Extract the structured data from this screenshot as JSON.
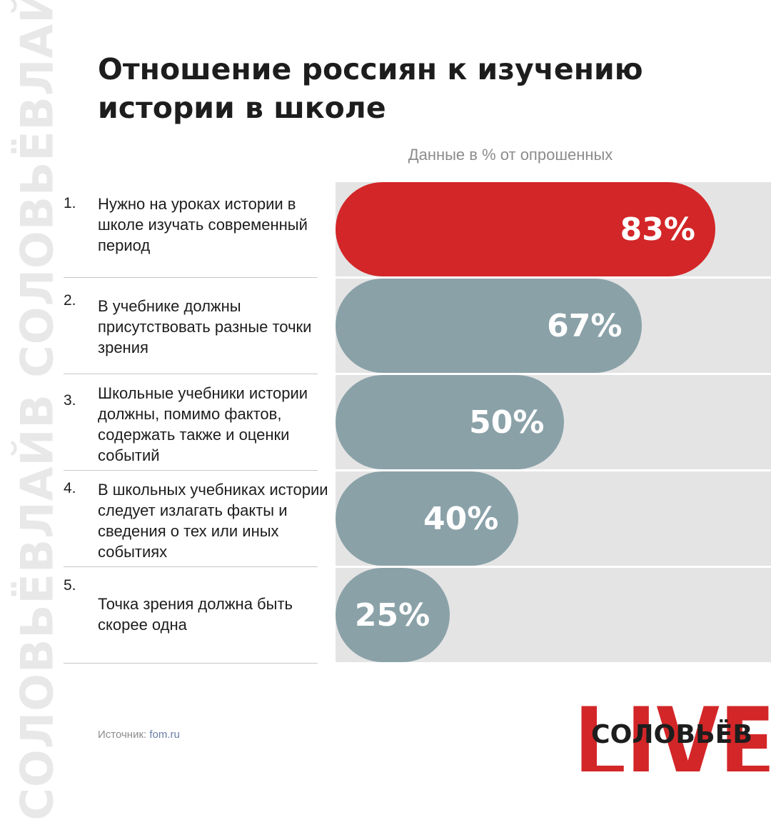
{
  "watermark": "СОЛОВЬЁВЛАЙВ СОЛОВЬЁВЛАЙВ",
  "chart_data": {
    "type": "bar",
    "orientation": "horizontal",
    "title": "Отношение россиян к изучению истории в школе",
    "subtitle": "Данные в % от опрошенных",
    "xlim": [
      0,
      100
    ],
    "unit": "%",
    "categories": [
      {
        "num": "1.",
        "text": "Нужно на уроках истории в школе изучать современный период"
      },
      {
        "num": "2.",
        "text": "В учебнике должны присутствовать разные точки зрения"
      },
      {
        "num": "3.",
        "text": "Школьные учебники истории должны, помимо фактов, содержать также и оценки событий"
      },
      {
        "num": "4.",
        "text": "В школьных учебниках истории следует излагать факты и сведения о тех или иных событиях"
      },
      {
        "num": "5.",
        "text": "Точка зрения должна быть скорее одна"
      }
    ],
    "values": [
      83,
      67,
      50,
      40,
      25
    ],
    "value_labels": [
      "83%",
      "67%",
      "50%",
      "40%",
      "25%"
    ],
    "highlight_index": 0,
    "colors": {
      "highlight": "#d32628",
      "bar": "#8aa1a8",
      "track": "#e4e4e4"
    }
  },
  "source": {
    "label": "Источник:",
    "link": "fom.ru"
  },
  "logo": {
    "big": "LIVE",
    "small": "СОЛОВЬЁВ",
    "colors": {
      "big": "#d32628",
      "small": "#1d1d1d"
    }
  }
}
